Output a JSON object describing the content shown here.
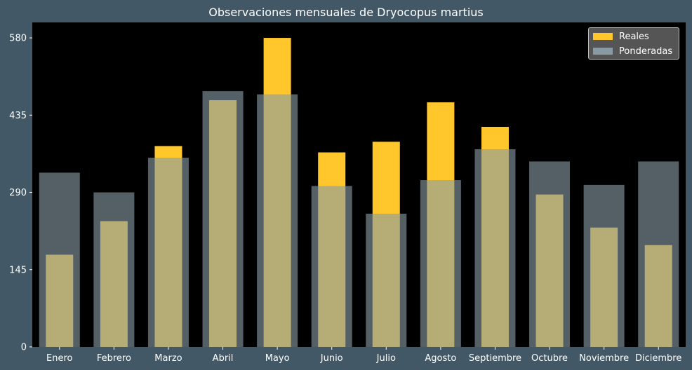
{
  "chart_data": {
    "type": "bar",
    "title": "Observaciones mensuales de Dryocopus martius",
    "xlabel": "",
    "ylabel": "",
    "categories": [
      "Enero",
      "Febrero",
      "Marzo",
      "Abril",
      "Mayo",
      "Junio",
      "Julio",
      "Agosto",
      "Septiembre",
      "Octubre",
      "Noviembre",
      "Diciembre"
    ],
    "series": [
      {
        "name": "Reales",
        "color": "#FFC72C",
        "values": [
          173,
          236,
          377,
          463,
          580,
          365,
          385,
          459,
          413,
          286,
          224,
          191
        ]
      },
      {
        "name": "Ponderadas",
        "color": "#889BA4",
        "values": [
          327,
          290,
          355,
          480,
          474,
          302,
          250,
          313,
          371,
          348,
          304,
          348
        ]
      }
    ],
    "yticks": [
      "0",
      "145",
      "290",
      "435",
      "580"
    ],
    "ylim": [
      0,
      609
    ],
    "grid": false,
    "legend_position": "top-right",
    "plot_background": "#000000",
    "figure_background": "#425866"
  }
}
